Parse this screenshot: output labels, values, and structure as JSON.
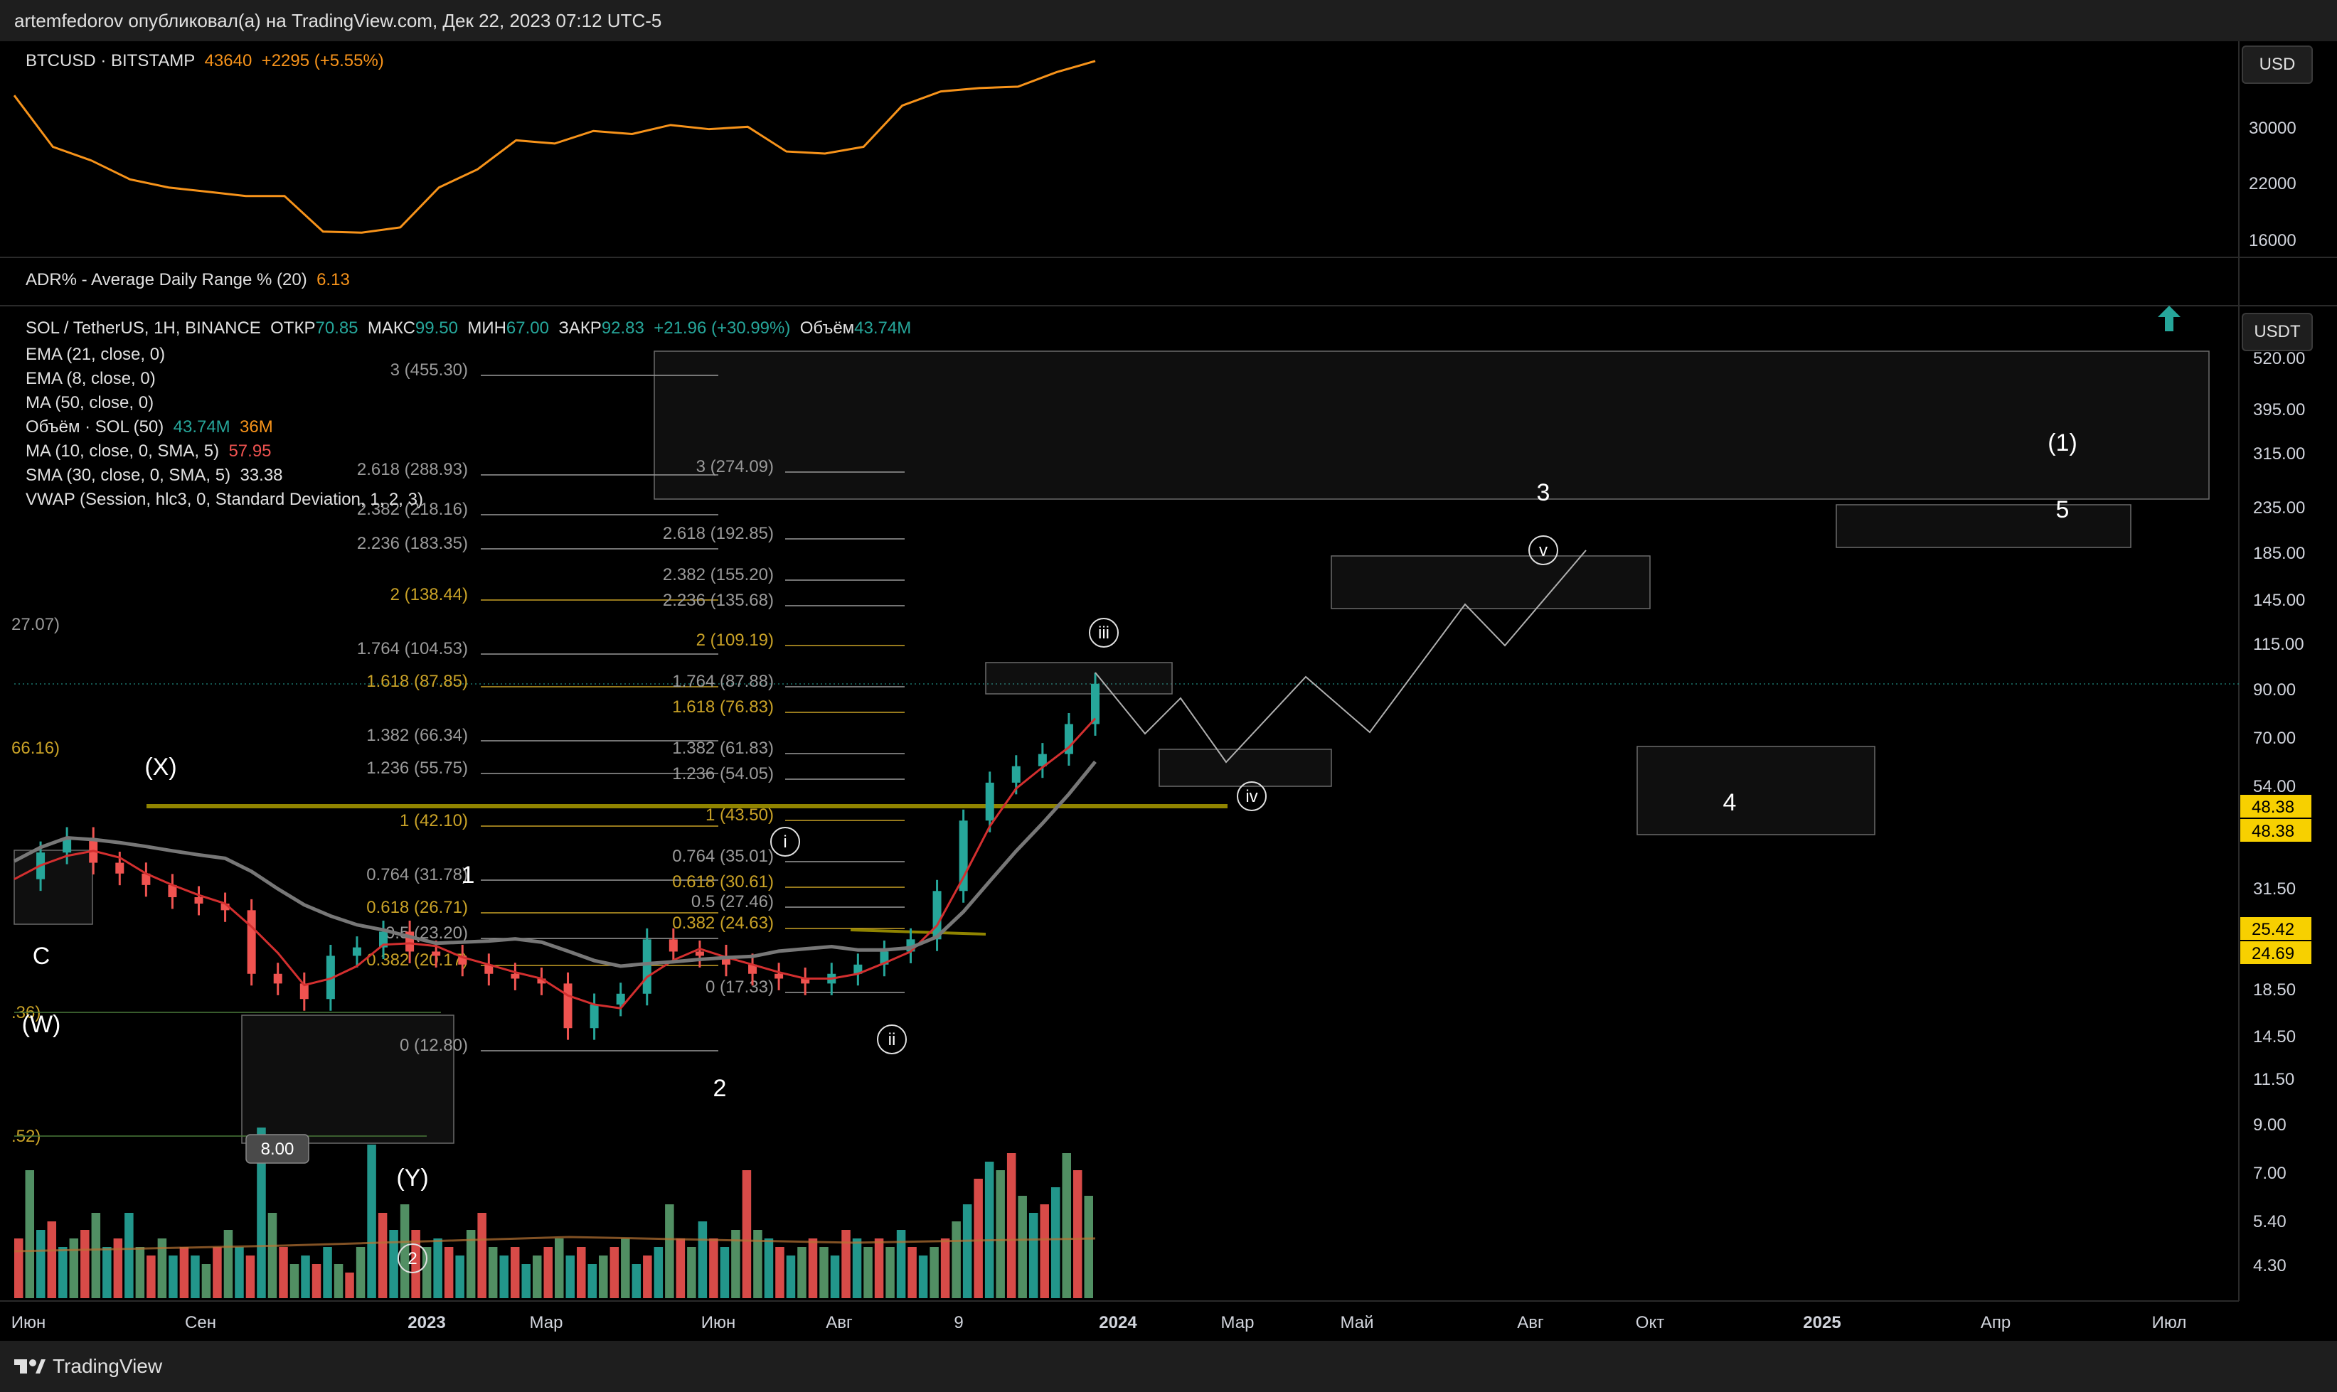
{
  "header": {
    "text": "artemfedorov опубликовал(а) на TradingView.com, Дек 22, 2023 07:12 UTC-5"
  },
  "footer": {
    "brand": "TradingView"
  },
  "colors": {
    "bg": "#000000",
    "panel": "#1e1e1e",
    "up": "#26a69a",
    "down": "#ef5350",
    "orange": "#f7931a",
    "gold": "#c9a227",
    "red_ma": "#d32f2f",
    "gray_ma": "#777777"
  },
  "btc_panel": {
    "symbol": "BTCUSD · BITSTAMP",
    "price": "43640",
    "change": "+2295 (+5.55%)",
    "currency_button": "USD",
    "axis_ticks": [
      "30000",
      "22000",
      "16000"
    ]
  },
  "adr_panel": {
    "label": "ADR% - Average Daily Range % (20)",
    "value": "6.13"
  },
  "main_legend": {
    "symbol": "SOL / TetherUS, 1H, BINANCE",
    "open_label": "ОТКР",
    "open": "70.85",
    "high_label": "МАКС",
    "high": "99.50",
    "low_label": "МИН",
    "low": "67.00",
    "close_label": "ЗАКР",
    "close": "92.83",
    "change": "+21.96 (+30.99%)",
    "volume_label": "Объём",
    "volume": "43.74M",
    "indicators": [
      {
        "text": "EMA (21, close, 0)"
      },
      {
        "text": "EMA (8, close, 0)"
      },
      {
        "text": "MA (50, close, 0)"
      },
      {
        "text": "Объём · SOL (50)",
        "v1": "43.74M",
        "v2": "36M"
      },
      {
        "text": "MA (10, close, 0, SMA, 5)",
        "v1": "57.95"
      },
      {
        "text": "SMA (30, close, 0, SMA, 5)",
        "v1": "33.38"
      },
      {
        "text": "VWAP (Session, hlc3, 0, Standard Deviation, 1, 2, 3)"
      }
    ],
    "currency_button": "USDT"
  },
  "chart_data": {
    "type": "line",
    "scale": "log",
    "x_axis": [
      "Июн",
      "Сен",
      "2023",
      "Мар",
      "Июн",
      "Авг",
      "9",
      "2024",
      "Мар",
      "Май",
      "Авг",
      "Окт",
      "2025",
      "Апр",
      "Июл"
    ],
    "y_axis": [
      "520.00",
      "395.00",
      "315.00",
      "235.00",
      "185.00",
      "145.00",
      "115.00",
      "90.00",
      "70.00",
      "54.00",
      "31.50",
      "18.50",
      "14.50",
      "11.50",
      "9.00",
      "7.00",
      "5.40",
      "4.30"
    ],
    "price_tags": [
      {
        "value": "48.38",
        "color": "#f7d000"
      },
      {
        "value": "48.38",
        "color": "#f7d000"
      },
      {
        "value": "25.42",
        "color": "#f7d000"
      },
      {
        "value": "24.69",
        "color": "#f7d000"
      }
    ],
    "btc_series": [
      36000,
      27000,
      25000,
      22500,
      21500,
      21000,
      20500,
      20500,
      16800,
      16700,
      17200,
      21500,
      23800,
      28000,
      27500,
      29500,
      29000,
      30500,
      29800,
      30200,
      26300,
      26000,
      27000,
      34000,
      36800,
      37500,
      37800,
      41000,
      43640
    ],
    "sol_closes": [
      33,
      38,
      41,
      36,
      34,
      32,
      30,
      29,
      28,
      20,
      19,
      17.5,
      22,
      23,
      25,
      22.5,
      22,
      21,
      20,
      19.5,
      19,
      15,
      17,
      18,
      24,
      22.5,
      22,
      21,
      20,
      19.5,
      19,
      20,
      21,
      22.5,
      24,
      31,
      45,
      55,
      60,
      64,
      75,
      92.83
    ],
    "fib_left": [
      {
        "label": "3 (455.30)",
        "color": "#9a9a9a"
      },
      {
        "label": "2.618 (288.93)",
        "color": "#9a9a9a"
      },
      {
        "label": "2.382 (218.16)",
        "color": "#9a9a9a"
      },
      {
        "label": "2.236 (183.35)",
        "color": "#9a9a9a"
      },
      {
        "label": "2 (138.44)",
        "color": "#c9a227"
      },
      {
        "label": "1.764 (104.53)",
        "color": "#9a9a9a"
      },
      {
        "label": "1.618 (87.85)",
        "color": "#c9a227"
      },
      {
        "label": "1.382 (66.34)",
        "color": "#9a9a9a"
      },
      {
        "label": "1.236 (55.75)",
        "color": "#9a9a9a"
      },
      {
        "label": "1 (42.10)",
        "color": "#c9a227"
      },
      {
        "label": "0.764 (31.78)",
        "color": "#9a9a9a"
      },
      {
        "label": "0.618 (26.71)",
        "color": "#c9a227"
      },
      {
        "label": "0.5 (23.20)",
        "color": "#9a9a9a"
      },
      {
        "label": "0.382 (20.17)",
        "color": "#c9a227"
      },
      {
        "label": "0 (12.80)",
        "color": "#9a9a9a"
      }
    ],
    "fib_right": [
      {
        "label": "3 (274.09)",
        "color": "#9a9a9a"
      },
      {
        "label": "2.618 (192.85)",
        "color": "#9a9a9a"
      },
      {
        "label": "2.382 (155.20)",
        "color": "#9a9a9a"
      },
      {
        "label": "2.236 (135.68)",
        "color": "#9a9a9a"
      },
      {
        "label": "2 (109.19)",
        "color": "#c9a227"
      },
      {
        "label": "1.764 (87.88)",
        "color": "#9a9a9a"
      },
      {
        "label": "1.618 (76.83)",
        "color": "#c9a227"
      },
      {
        "label": "1.382 (61.83)",
        "color": "#9a9a9a"
      },
      {
        "label": "1.236 (54.05)",
        "color": "#9a9a9a"
      },
      {
        "label": "1 (43.50)",
        "color": "#c9a227"
      },
      {
        "label": "0.764 (35.01)",
        "color": "#9a9a9a"
      },
      {
        "label": "0.618 (30.61)",
        "color": "#c9a227"
      },
      {
        "label": "0.5 (27.46)",
        "color": "#9a9a9a"
      },
      {
        "label": "0.382 (24.63)",
        "color": "#c9a227"
      },
      {
        "label": "0 (17.33)",
        "color": "#9a9a9a"
      }
    ],
    "edge_labels": [
      "27.07)",
      "66.16)",
      ".36)",
      ".52)"
    ],
    "wave_labels": [
      "C",
      "(W)",
      "(X)",
      "(Y)",
      "1",
      "2",
      "3",
      "4",
      "5",
      "(1)",
      "i",
      "ii",
      "iii",
      "iv",
      "v",
      "2"
    ],
    "range_label": "8.00",
    "volume_bars": [
      0.35,
      0.75,
      0.4,
      0.45,
      0.3,
      0.35,
      0.4,
      0.5,
      0.3,
      0.35,
      0.5,
      0.3,
      0.25,
      0.35,
      0.25,
      0.3,
      0.25,
      0.2,
      0.3,
      0.4,
      0.3,
      0.25,
      1.0,
      0.5,
      0.3,
      0.2,
      0.25,
      0.2,
      0.3,
      0.2,
      0.15,
      0.3,
      0.9,
      0.5,
      0.4,
      0.55,
      0.4,
      0.3,
      0.35,
      0.3,
      0.25,
      0.4,
      0.5,
      0.3,
      0.25,
      0.3,
      0.2,
      0.25,
      0.3,
      0.35,
      0.25,
      0.3,
      0.2,
      0.25,
      0.3,
      0.35,
      0.2,
      0.25,
      0.3,
      0.55,
      0.35,
      0.3,
      0.45,
      0.35,
      0.3,
      0.4,
      0.75,
      0.4,
      0.35,
      0.3,
      0.25,
      0.3,
      0.35,
      0.3,
      0.25,
      0.4,
      0.35,
      0.3,
      0.35,
      0.3,
      0.4,
      0.3,
      0.25,
      0.3,
      0.35,
      0.45,
      0.55,
      0.7,
      0.8,
      0.75,
      0.85,
      0.6,
      0.5,
      0.55,
      0.65,
      0.85,
      0.75,
      0.6
    ]
  }
}
